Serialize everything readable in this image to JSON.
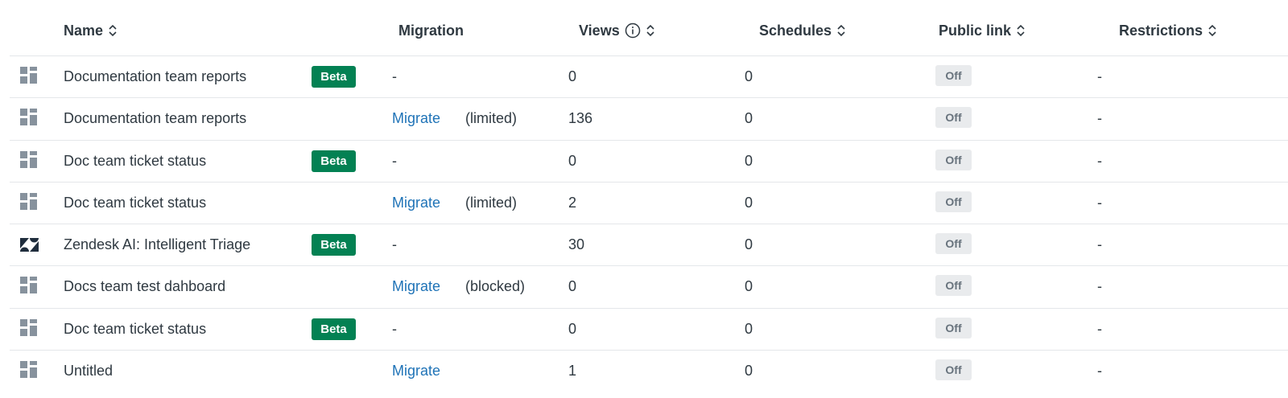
{
  "table": {
    "columns": [
      "Name",
      "Migration",
      "Views",
      "Schedules",
      "Public link",
      "Restrictions"
    ],
    "rows": [
      {
        "name": "Documentation team reports",
        "badge": "Beta",
        "migration": "-",
        "views": 0,
        "schedules": 0,
        "public_link": "Off",
        "restrictions": "-"
      },
      {
        "name": "Documentation team reports",
        "migration": "Migrate",
        "migration_status": "(limited)",
        "views": 136,
        "schedules": 0,
        "public_link": "Off",
        "restrictions": "-"
      },
      {
        "name": "Doc team ticket status",
        "badge": "Beta",
        "migration": "-",
        "views": 0,
        "schedules": 0,
        "public_link": "Off",
        "restrictions": "-"
      },
      {
        "name": "Doc team ticket status",
        "migration": "Migrate",
        "migration_status": "(limited)",
        "views": 2,
        "schedules": 0,
        "public_link": "Off",
        "restrictions": "-"
      },
      {
        "name": "Zendesk AI: Intelligent Triage",
        "badge": "Beta",
        "migration": "-",
        "views": 30,
        "schedules": 0,
        "public_link": "Off",
        "restrictions": "-"
      },
      {
        "name": "Docs team test dahboard",
        "migration": "Migrate",
        "migration_status": "(blocked)",
        "views": 0,
        "schedules": 0,
        "public_link": "Off",
        "restrictions": "-"
      },
      {
        "name": "Doc team ticket status",
        "badge": "Beta",
        "migration": "-",
        "views": 0,
        "schedules": 0,
        "public_link": "Off",
        "restrictions": "-"
      },
      {
        "name": "Untitled",
        "migration": "Migrate",
        "views": 1,
        "schedules": 0,
        "public_link": "Off",
        "restrictions": "-"
      }
    ]
  }
}
